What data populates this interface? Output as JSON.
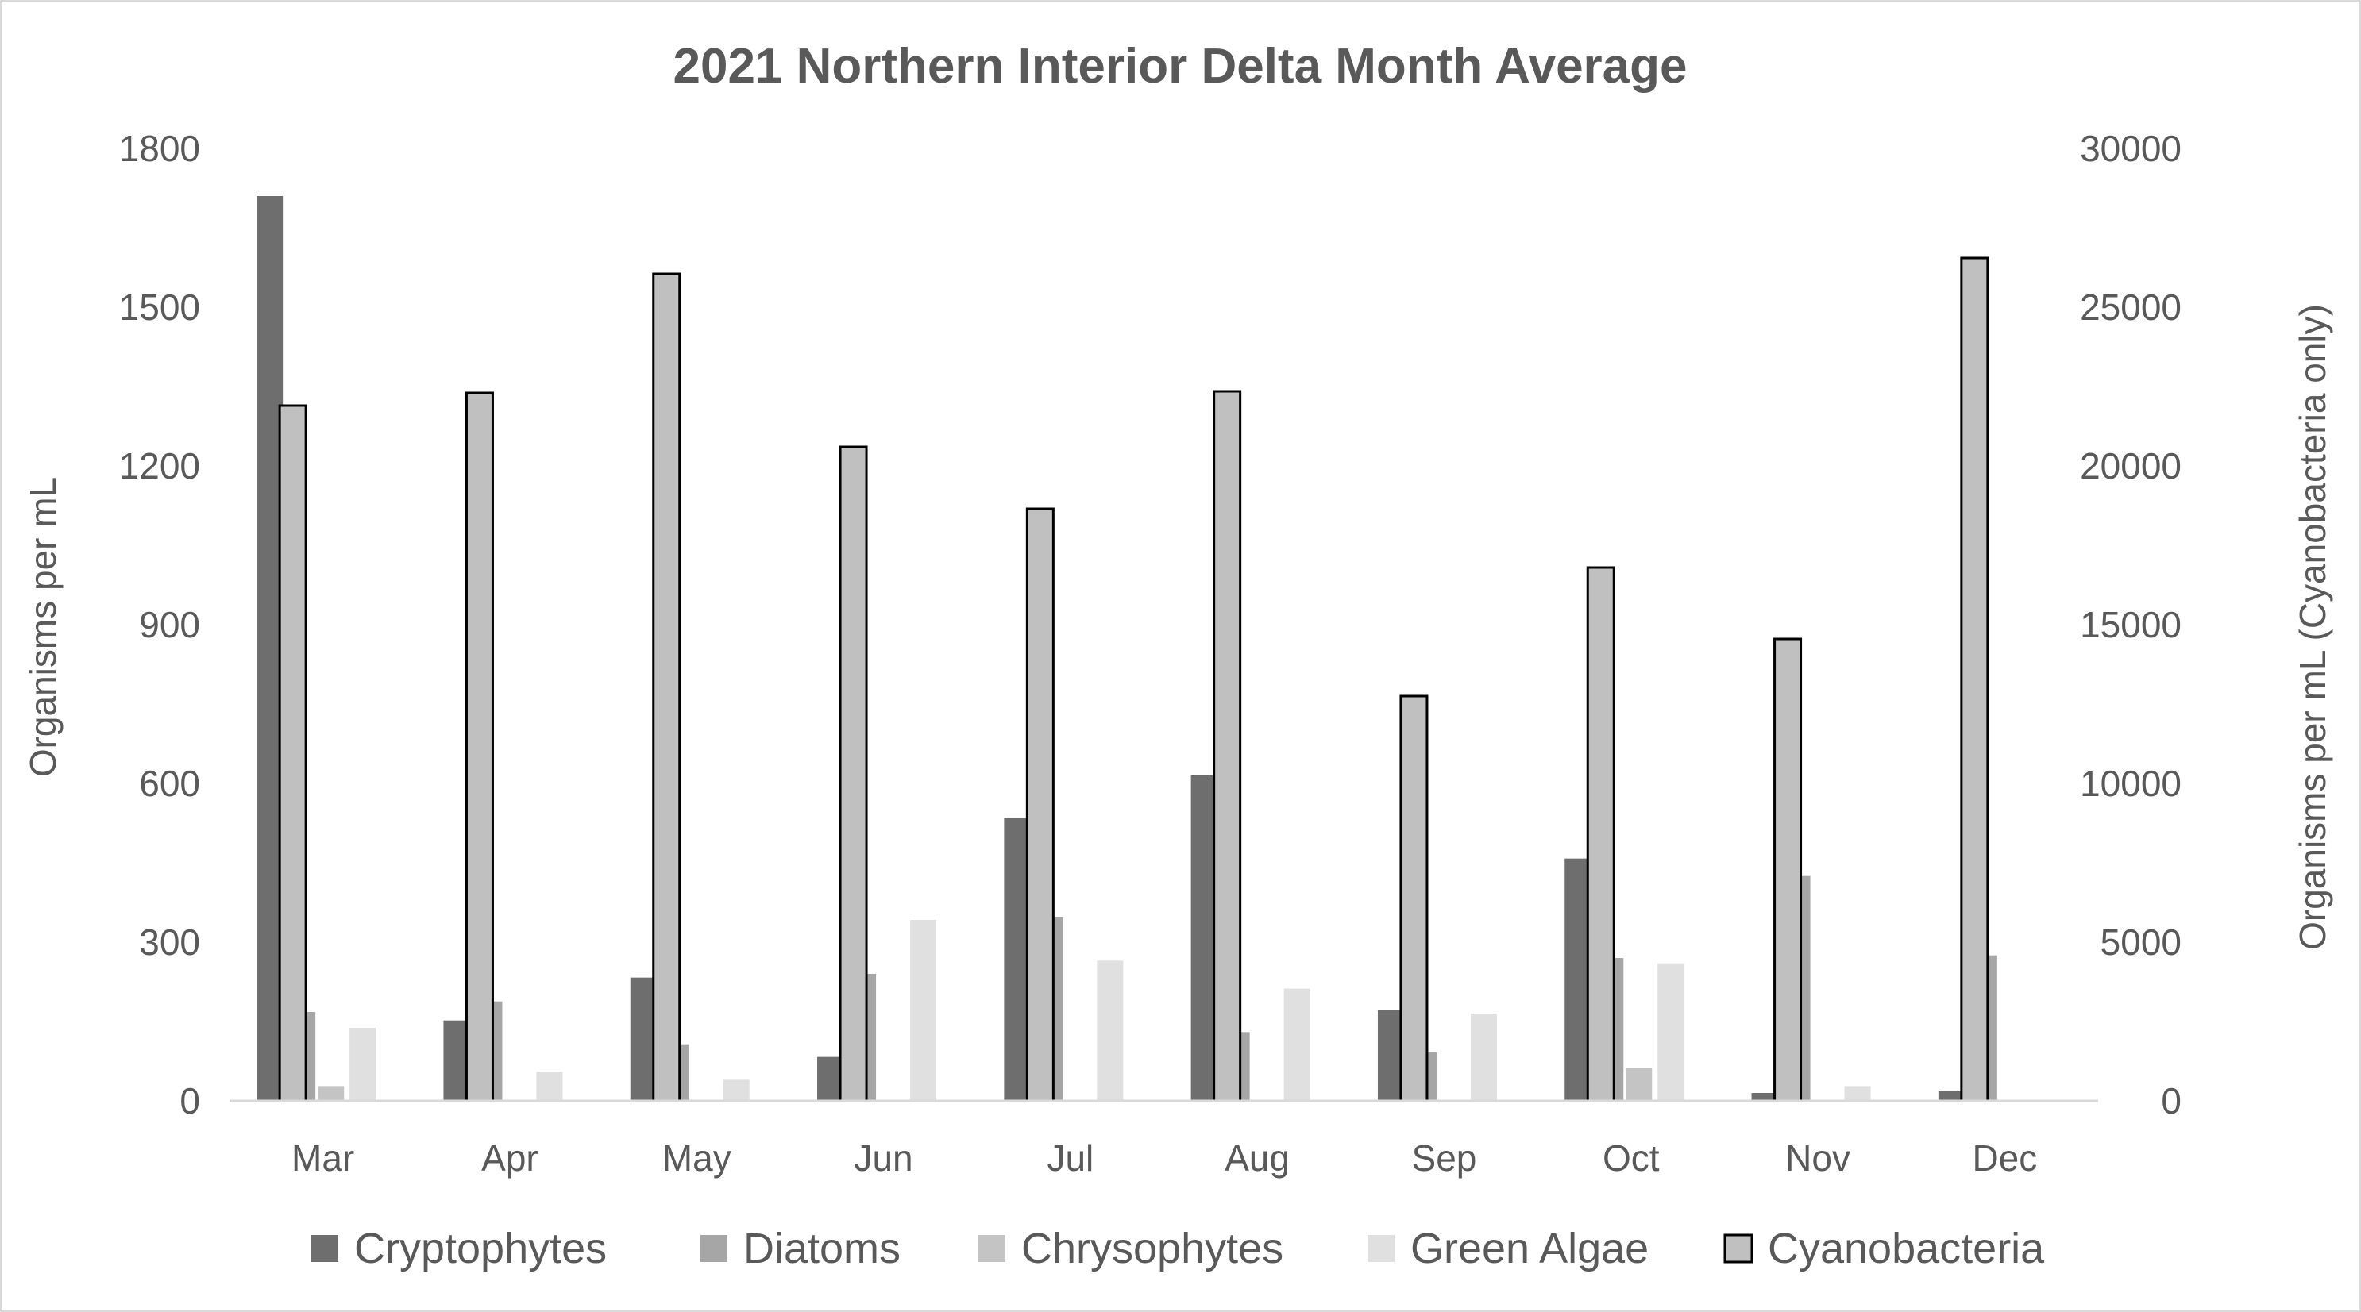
{
  "chart_data": {
    "type": "bar",
    "title": "2021 Northern Interior Delta Month Average",
    "ylabel": "Organisms per mL",
    "y2label": "Organisms per mL (Cyanobacteria only)",
    "xlabel": "",
    "categories": [
      "Mar",
      "Apr",
      "May",
      "Jun",
      "Jul",
      "Aug",
      "Sep",
      "Oct",
      "Nov",
      "Dec"
    ],
    "ylim": [
      0,
      1800
    ],
    "y2lim": [
      0,
      30000
    ],
    "yticks": [
      "0",
      "300",
      "600",
      "900",
      "1200",
      "1500",
      "1800"
    ],
    "y2ticks": [
      "0",
      "5000",
      "10000",
      "15000",
      "20000",
      "25000",
      "30000"
    ],
    "grid": false,
    "legend_position": "bottom",
    "series": [
      {
        "name": "Cryptophytes",
        "axis": "left",
        "color": "#6e6e6e",
        "outline": false,
        "values": [
          1710,
          152,
          233,
          83,
          535,
          615,
          172,
          458,
          15,
          18
        ]
      },
      {
        "name": "Diatoms",
        "axis": "left",
        "color": "#a6a6a6",
        "outline": false,
        "values": [
          168,
          188,
          107,
          240,
          348,
          130,
          92,
          270,
          425,
          275
        ]
      },
      {
        "name": "Chrysophytes",
        "axis": "left",
        "color": "#c4c4c4",
        "outline": false,
        "values": [
          28,
          0,
          0,
          0,
          0,
          0,
          0,
          62,
          0,
          0
        ]
      },
      {
        "name": "Green Algae",
        "axis": "left",
        "color": "#e0e0e0",
        "outline": false,
        "values": [
          138,
          55,
          40,
          342,
          265,
          212,
          165,
          260,
          28,
          0
        ]
      },
      {
        "name": "Cyanobacteria",
        "axis": "right",
        "color": "#c0c0c0",
        "outline": true,
        "values": [
          21900,
          22300,
          26050,
          20600,
          18650,
          22350,
          12750,
          16800,
          14550,
          26550
        ]
      }
    ]
  }
}
